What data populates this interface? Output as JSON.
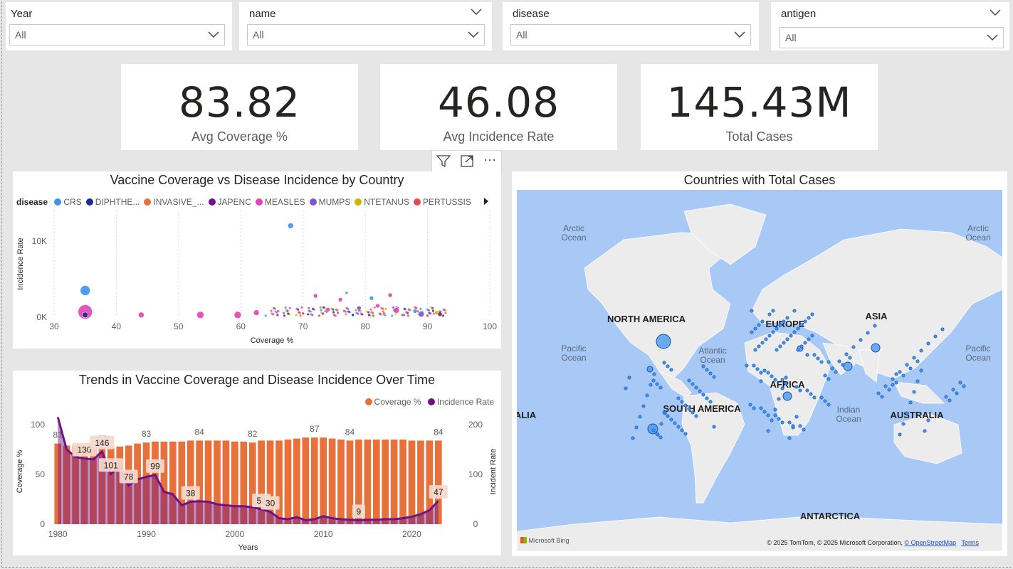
{
  "slicers": [
    {
      "label": "Year",
      "value": "All"
    },
    {
      "label": "name",
      "value": "All"
    },
    {
      "label": "disease",
      "value": "All"
    },
    {
      "label": "antigen",
      "value": "All"
    }
  ],
  "kpis": [
    {
      "value": "83.82",
      "caption": "Avg Coverage %"
    },
    {
      "value": "46.08",
      "caption": "Avg Incidence Rate"
    },
    {
      "value": "145.43M",
      "caption": "Total Cases"
    }
  ],
  "toolbar": {
    "icons": [
      "filter-icon",
      "focus-mode-icon",
      "more-options-icon"
    ],
    "more_label": "···"
  },
  "scatter": {
    "title": "Vaccine Coverage vs Disease Incidence by Country",
    "legend_title": "disease",
    "legend": [
      {
        "name": "CRS",
        "color": "#3b95ef"
      },
      {
        "name": "DIPHTHE...",
        "color": "#1a2c8f"
      },
      {
        "name": "INVASIVE_...",
        "color": "#e8703a"
      },
      {
        "name": "JAPENC",
        "color": "#6e1286"
      },
      {
        "name": "MEASLES",
        "color": "#e244b8"
      },
      {
        "name": "MUMPS",
        "color": "#7a55d6"
      },
      {
        "name": "NTETANUS",
        "color": "#d1b300"
      },
      {
        "name": "PERTUSSIS",
        "color": "#e04a55"
      }
    ]
  },
  "trend": {
    "title": "Trends in Vaccine Coverage and Disease Incidence Over Time",
    "legend": [
      {
        "name": "Coverage %",
        "color": "#e8703a"
      },
      {
        "name": "Incidence Rate",
        "color": "#6e1286"
      }
    ]
  },
  "map": {
    "title": "Countries with Total Cases",
    "labels": {
      "arctic_left": "Arctic\nOcean",
      "arctic_right": "Arctic\nOcean",
      "pacific_left": "Pacific\nOcean",
      "pacific_right": "Pacific\nOcean",
      "atlantic": "Atlantic\nOcean",
      "indian": "Indian\nOcean",
      "north_america": "NORTH AMERICA",
      "south_america": "SOUTH AMERICA",
      "europe": "EUROPE",
      "africa": "AFRICA",
      "asia": "ASIA",
      "australia": "AUSTRALIA",
      "australia_left": "ALIA",
      "antarctica": "ANTARCTICA"
    },
    "brand": "Microsoft Bing",
    "attribution": "© 2025 TomTom, © 2025 Microsoft Corporation, ",
    "osm_link": "© OpenStreetMap",
    "terms_link": "Terms"
  },
  "chart_data": [
    {
      "type": "scatter",
      "title": "Vaccine Coverage vs Disease Incidence by Country",
      "xlabel": "Coverage %",
      "ylabel": "Incidence Rate",
      "xlim": [
        30,
        100
      ],
      "xticks": [
        "30",
        "40",
        "50",
        "60",
        "70",
        "80",
        "90",
        "100"
      ],
      "yticks": [
        {
          "label": "0K",
          "v": 0
        },
        {
          "label": "10K",
          "v": 10000
        }
      ],
      "ylim": [
        0,
        14000
      ],
      "points": [
        {
          "x": 68,
          "y": 12000,
          "s": 4,
          "d": "CRS"
        },
        {
          "x": 35,
          "y": 3500,
          "s": 7,
          "d": "CRS"
        },
        {
          "x": 35,
          "y": 700,
          "s": 10,
          "d": "MEASLES"
        },
        {
          "x": 35,
          "y": 300,
          "s": 4,
          "d": "DIPHTHE..."
        },
        {
          "x": 44,
          "y": 300,
          "s": 4,
          "d": "MEASLES"
        },
        {
          "x": 53.5,
          "y": 300,
          "s": 5,
          "d": "MEASLES"
        },
        {
          "x": 59.5,
          "y": 300,
          "s": 5,
          "d": "MEASLES"
        },
        {
          "x": 62.5,
          "y": 600,
          "s": 4,
          "d": "MEASLES"
        },
        {
          "x": 72,
          "y": 2800,
          "s": 3,
          "d": "MEASLES"
        },
        {
          "x": 76,
          "y": 2300,
          "s": 3,
          "d": "MEASLES"
        },
        {
          "x": 77,
          "y": 3200,
          "s": 2,
          "d": "CRS"
        },
        {
          "x": 79,
          "y": 1200,
          "s": 3,
          "d": "MUMPS"
        },
        {
          "x": 81,
          "y": 2500,
          "s": 3,
          "d": "CRS"
        },
        {
          "x": 82,
          "y": 1500,
          "s": 3,
          "d": "MEASLES"
        },
        {
          "x": 84,
          "y": 2900,
          "s": 3,
          "d": "PERTUSSIS"
        },
        {
          "x": 85,
          "y": 900,
          "s": 4,
          "d": "MEASLES"
        },
        {
          "x": 74,
          "y": 1000,
          "s": 3,
          "d": "MEASLES"
        },
        {
          "x": 88,
          "y": 800,
          "s": 3,
          "d": "CRS"
        },
        {
          "x": 89,
          "y": 400,
          "s": 4,
          "d": "MUMPS"
        },
        {
          "x": 91.5,
          "y": 600,
          "s": 3,
          "d": "NTETANUS"
        },
        {
          "x": 92,
          "y": 400,
          "s": 3,
          "d": "JAPENC"
        },
        {
          "x": 66,
          "y": 800,
          "s": 2,
          "d": "MEASLES"
        },
        {
          "x": 70,
          "y": 500,
          "s": 2,
          "d": "PERTUSSIS"
        },
        {
          "x": 78,
          "y": 300,
          "s": 2,
          "d": "DIPHTHE..."
        },
        {
          "x": 83,
          "y": 500,
          "s": 2,
          "d": "INVASIVE_..."
        },
        {
          "x": 86,
          "y": 300,
          "s": 2,
          "d": "MUMPS"
        },
        {
          "x": 90,
          "y": 200,
          "s": 2,
          "d": "PERTUSSIS"
        }
      ]
    },
    {
      "type": "bar+line",
      "title": "Trends in Vaccine Coverage and Disease Incidence Over Time",
      "xlabel": "Years",
      "ylabel": "Coverage %",
      "y2label": "Incident Rate",
      "years": [
        1980,
        1981,
        1982,
        1983,
        1984,
        1985,
        1986,
        1987,
        1988,
        1989,
        1990,
        1991,
        1992,
        1993,
        1994,
        1995,
        1996,
        1997,
        1998,
        1999,
        2000,
        2001,
        2002,
        2003,
        2004,
        2005,
        2006,
        2007,
        2008,
        2009,
        2010,
        2011,
        2012,
        2013,
        2014,
        2015,
        2016,
        2017,
        2018,
        2019,
        2020,
        2021,
        2022,
        2023
      ],
      "coverage": [
        81,
        79,
        79,
        78,
        77,
        77,
        77,
        78,
        79,
        81,
        82,
        83,
        83,
        83,
        83,
        84,
        84,
        84,
        84,
        84,
        83,
        83,
        82,
        84,
        84,
        84,
        85,
        86,
        87,
        87,
        87,
        86,
        85,
        84,
        85,
        85,
        85,
        85,
        85,
        85,
        84,
        84,
        84,
        84
      ],
      "incidence": [
        215,
        150,
        135,
        132,
        130,
        146,
        101,
        115,
        78,
        90,
        95,
        99,
        65,
        60,
        38,
        45,
        46,
        45,
        40,
        38,
        36,
        36,
        34,
        30,
        25,
        12,
        10,
        14,
        8,
        10,
        16,
        12,
        10,
        9,
        8,
        9,
        9,
        10,
        10,
        12,
        15,
        20,
        28,
        47
      ],
      "coverage_labels": [
        {
          "i": 0,
          "t": "81"
        },
        {
          "i": 5,
          "t": "77"
        },
        {
          "i": 10,
          "t": "83"
        },
        {
          "i": 16,
          "t": "84"
        },
        {
          "i": 22,
          "t": "82"
        },
        {
          "i": 29,
          "t": "87"
        },
        {
          "i": 33,
          "t": "84"
        },
        {
          "i": 43,
          "t": "84"
        }
      ],
      "incidence_labels": [
        {
          "i": 3,
          "t": "130"
        },
        {
          "i": 5,
          "t": "146"
        },
        {
          "i": 6,
          "t": "101"
        },
        {
          "i": 8,
          "t": "78"
        },
        {
          "i": 11,
          "t": "99"
        },
        {
          "i": 15,
          "t": "38"
        },
        {
          "i": 23,
          "t": "52"
        },
        {
          "i": 24,
          "t": "30"
        },
        {
          "i": 34,
          "t": "9"
        },
        {
          "i": 43,
          "t": "47"
        }
      ],
      "ylim": [
        0,
        100
      ],
      "y2lim": [
        0,
        300
      ],
      "xticks": [
        "1980",
        "1990",
        "2000",
        "2010",
        "2020"
      ],
      "yticks": [
        "0",
        "50",
        "100"
      ],
      "y2ticks": [
        "0",
        "100",
        "200"
      ]
    }
  ]
}
